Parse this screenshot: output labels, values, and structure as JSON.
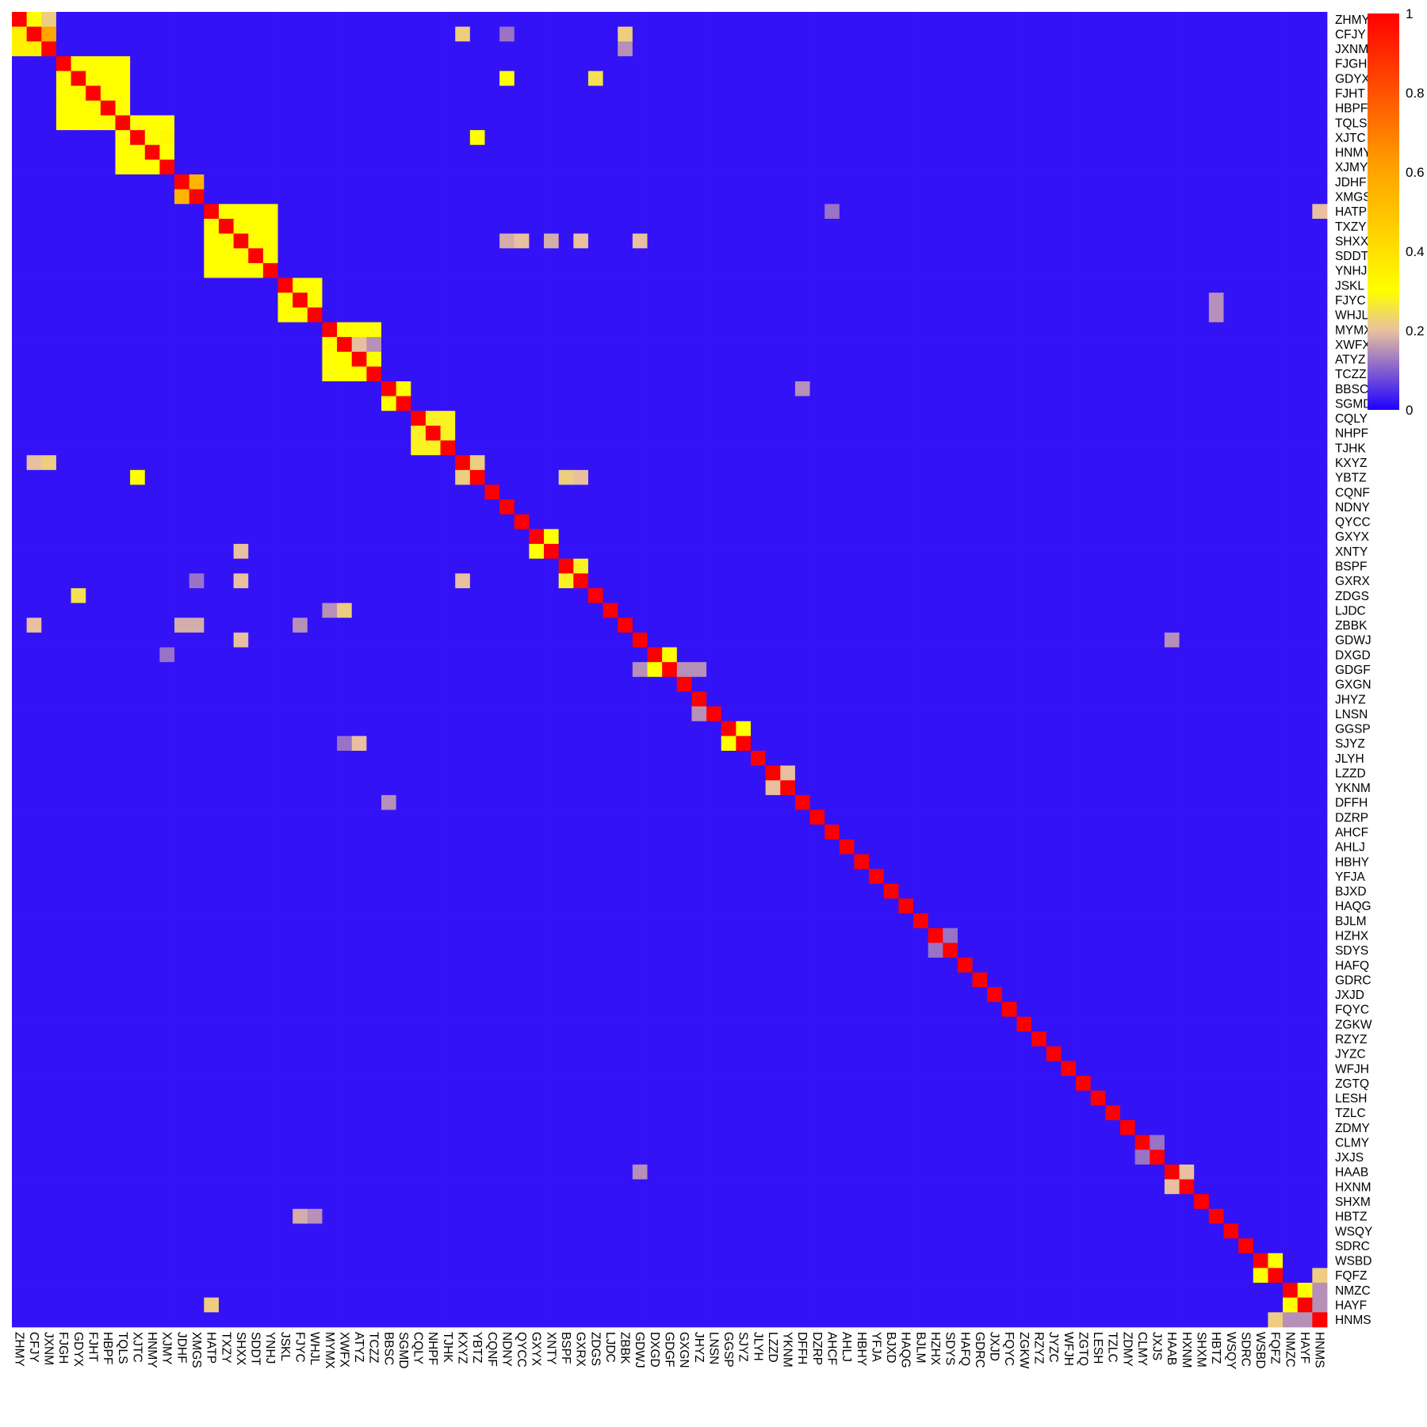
{
  "chart_data": {
    "type": "heatmap",
    "title": "",
    "xlabel": "",
    "ylabel": "",
    "labels": [
      "ZHMY",
      "CFJY",
      "JXNM",
      "FJGH",
      "GDYX",
      "FJHT",
      "HBPF",
      "TQLS",
      "XJTC",
      "HNMY",
      "XJMY",
      "JDHF",
      "XMGS",
      "HATP",
      "TXZY",
      "SHXX",
      "SDDT",
      "YNHJ",
      "JSKL",
      "FJYC",
      "WHJL",
      "MYMX",
      "XWFX",
      "ATYZ",
      "TCZZ",
      "BBSC",
      "SGMD",
      "CQLY",
      "NHPF",
      "TJHK",
      "KXYZ",
      "YBTZ",
      "CQNF",
      "NDNY",
      "QYCC",
      "GXYX",
      "XNTY",
      "BSPF",
      "GXRX",
      "ZDGS",
      "LJDC",
      "ZBBK",
      "GDWJ",
      "DXGD",
      "GDGF",
      "GXGN",
      "JHYZ",
      "LNSN",
      "GGSP",
      "SJYZ",
      "JLYH",
      "LZZD",
      "YKNM",
      "DFFH",
      "DZRP",
      "AHCF",
      "AHLJ",
      "HBHY",
      "YFJA",
      "BJXD",
      "HAQG",
      "BJLM",
      "HZHX",
      "SDYS",
      "HAFQ",
      "GDRC",
      "JXJD",
      "FQYC",
      "ZGKW",
      "RZYZ",
      "JYZC",
      "WFJH",
      "ZGTQ",
      "LESH",
      "TZLC",
      "ZDMY",
      "CLMY",
      "JXJS",
      "HAAB",
      "HXNM",
      "SHXM",
      "HBTZ",
      "WSQY",
      "SDRC",
      "WSBD",
      "FQFZ",
      "NMZC",
      "HAYF",
      "HNMS"
    ],
    "value_range": [
      0,
      1
    ],
    "colorbar_ticks": [
      "0",
      "0.2",
      "0.4",
      "0.6",
      "0.8",
      "1"
    ],
    "colorscale": [
      {
        "stop": 0,
        "color": "#1f00ff"
      },
      {
        "stop": 0.2,
        "color": "#e8c0a0"
      },
      {
        "stop": 0.3,
        "color": "#ffff00"
      },
      {
        "stop": 0.6,
        "color": "#ffa500"
      },
      {
        "stop": 1,
        "color": "#ff0000"
      }
    ],
    "diagonal_value": 1,
    "background_value": 0.02,
    "blocks": [
      {
        "start": 0,
        "end": 2,
        "value": 0.35
      },
      {
        "start": 3,
        "end": 7,
        "value": 0.3
      },
      {
        "start": 7,
        "end": 10,
        "value": 0.3
      },
      {
        "start": 11,
        "end": 12,
        "value": 0.55
      },
      {
        "start": 13,
        "end": 17,
        "value": 0.3
      },
      {
        "start": 18,
        "end": 20,
        "value": 0.3
      },
      {
        "start": 21,
        "end": 24,
        "value": 0.3
      },
      {
        "start": 25,
        "end": 26,
        "value": 0.3
      },
      {
        "start": 27,
        "end": 29,
        "value": 0.28
      },
      {
        "start": 30,
        "end": 31,
        "value": 0.22
      },
      {
        "start": 35,
        "end": 36,
        "value": 0.3
      },
      {
        "start": 37,
        "end": 38,
        "value": 0.28
      },
      {
        "start": 43,
        "end": 44,
        "value": 0.3
      },
      {
        "start": 48,
        "end": 49,
        "value": 0.3
      },
      {
        "start": 84,
        "end": 85,
        "value": 0.3
      },
      {
        "start": 86,
        "end": 87,
        "value": 0.3
      }
    ],
    "cells": [
      {
        "row": 0,
        "col": 1,
        "value": 0.3
      },
      {
        "row": 0,
        "col": 2,
        "value": 0.22
      },
      {
        "row": 1,
        "col": 2,
        "value": 0.6
      },
      {
        "row": 8,
        "col": 10,
        "value": 0.32
      },
      {
        "row": 8,
        "col": 31,
        "value": 0.3
      },
      {
        "row": 31,
        "col": 8,
        "value": 0.3
      },
      {
        "row": 4,
        "col": 39,
        "value": 0.25
      },
      {
        "row": 39,
        "col": 4,
        "value": 0.25
      },
      {
        "row": 1,
        "col": 30,
        "value": 0.22
      },
      {
        "row": 30,
        "col": 1,
        "value": 0.2
      },
      {
        "row": 30,
        "col": 2,
        "value": 0.22
      },
      {
        "row": 1,
        "col": 41,
        "value": 0.22
      },
      {
        "row": 2,
        "col": 41,
        "value": 0.15
      },
      {
        "row": 41,
        "col": 1,
        "value": 0.2
      },
      {
        "row": 41,
        "col": 11,
        "value": 0.18
      },
      {
        "row": 41,
        "col": 12,
        "value": 0.18
      },
      {
        "row": 15,
        "col": 42,
        "value": 0.2
      },
      {
        "row": 42,
        "col": 15,
        "value": 0.2
      },
      {
        "row": 15,
        "col": 38,
        "value": 0.2
      },
      {
        "row": 38,
        "col": 15,
        "value": 0.2
      },
      {
        "row": 15,
        "col": 33,
        "value": 0.18
      },
      {
        "row": 15,
        "col": 34,
        "value": 0.2
      },
      {
        "row": 15,
        "col": 36,
        "value": 0.18
      },
      {
        "row": 36,
        "col": 15,
        "value": 0.2
      },
      {
        "row": 21,
        "col": 23,
        "value": 0.3
      },
      {
        "row": 23,
        "col": 21,
        "value": 0.3
      },
      {
        "row": 22,
        "col": 23,
        "value": 0.2
      },
      {
        "row": 22,
        "col": 24,
        "value": 0.15
      },
      {
        "row": 40,
        "col": 21,
        "value": 0.15
      },
      {
        "row": 40,
        "col": 22,
        "value": 0.22
      },
      {
        "row": 49,
        "col": 23,
        "value": 0.2
      },
      {
        "row": 49,
        "col": 22,
        "value": 0.12
      },
      {
        "row": 38,
        "col": 30,
        "value": 0.2
      },
      {
        "row": 31,
        "col": 37,
        "value": 0.22
      },
      {
        "row": 31,
        "col": 38,
        "value": 0.2
      },
      {
        "row": 44,
        "col": 42,
        "value": 0.15
      },
      {
        "row": 44,
        "col": 45,
        "value": 0.15
      },
      {
        "row": 44,
        "col": 46,
        "value": 0.15
      },
      {
        "row": 47,
        "col": 46,
        "value": 0.15
      },
      {
        "row": 51,
        "col": 52,
        "value": 0.2
      },
      {
        "row": 52,
        "col": 51,
        "value": 0.2
      },
      {
        "row": 78,
        "col": 79,
        "value": 0.2
      },
      {
        "row": 79,
        "col": 78,
        "value": 0.2
      },
      {
        "row": 76,
        "col": 77,
        "value": 0.12
      },
      {
        "row": 77,
        "col": 76,
        "value": 0.12
      },
      {
        "row": 63,
        "col": 62,
        "value": 0.12
      },
      {
        "row": 62,
        "col": 63,
        "value": 0.12
      },
      {
        "row": 85,
        "col": 88,
        "value": 0.22
      },
      {
        "row": 88,
        "col": 85,
        "value": 0.22
      },
      {
        "row": 86,
        "col": 88,
        "value": 0.15
      },
      {
        "row": 88,
        "col": 86,
        "value": 0.15
      },
      {
        "row": 88,
        "col": 87,
        "value": 0.15
      },
      {
        "row": 87,
        "col": 88,
        "value": 0.15
      },
      {
        "row": 4,
        "col": 33,
        "value": 0.3
      },
      {
        "row": 13,
        "col": 88,
        "value": 0.2
      },
      {
        "row": 87,
        "col": 13,
        "value": 0.22
      },
      {
        "row": 81,
        "col": 19,
        "value": 0.18
      },
      {
        "row": 81,
        "col": 20,
        "value": 0.15
      },
      {
        "row": 19,
        "col": 81,
        "value": 0.15
      },
      {
        "row": 78,
        "col": 42,
        "value": 0.15
      },
      {
        "row": 42,
        "col": 78,
        "value": 0.15
      },
      {
        "row": 41,
        "col": 19,
        "value": 0.15
      },
      {
        "row": 53,
        "col": 25,
        "value": 0.15
      },
      {
        "row": 25,
        "col": 53,
        "value": 0.15
      },
      {
        "row": 20,
        "col": 81,
        "value": 0.15
      },
      {
        "row": 43,
        "col": 10,
        "value": 0.12
      },
      {
        "row": 1,
        "col": 33,
        "value": 0.12
      },
      {
        "row": 13,
        "col": 55,
        "value": 0.12
      },
      {
        "row": 38,
        "col": 12,
        "value": 0.12
      }
    ]
  }
}
